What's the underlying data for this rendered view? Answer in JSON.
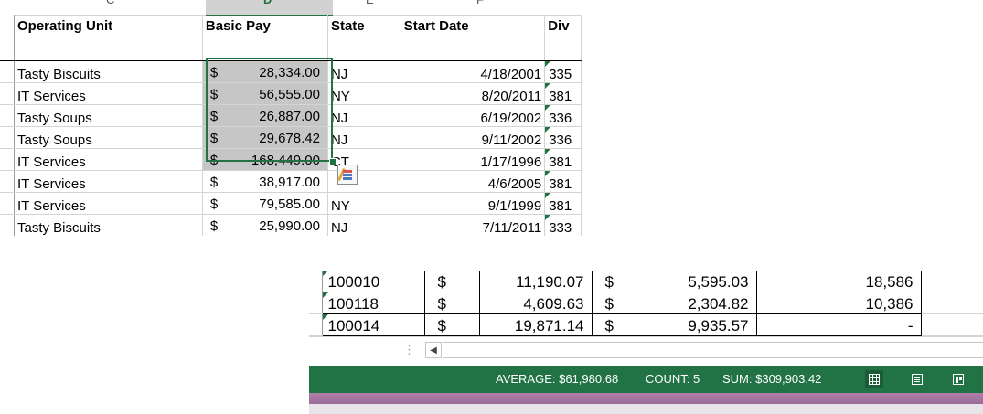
{
  "top_sheet": {
    "column_letters": [
      "C",
      "D",
      "E",
      "F"
    ],
    "headers": {
      "operating_unit": "Operating Unit",
      "basic_pay": "Basic Pay",
      "state": "State",
      "start_date": "Start Date",
      "division": "Div"
    },
    "rows": [
      {
        "unit": "Tasty Biscuits",
        "cur": "$",
        "pay": "28,334.00",
        "state": "NJ",
        "date": "4/18/2001",
        "div": "335"
      },
      {
        "unit": "IT Services",
        "cur": "$",
        "pay": "56,555.00",
        "state": "NY",
        "date": "8/20/2011",
        "div": "381"
      },
      {
        "unit": "Tasty Soups",
        "cur": "$",
        "pay": "26,887.00",
        "state": "NJ",
        "date": "6/19/2002",
        "div": "336"
      },
      {
        "unit": "Tasty Soups",
        "cur": "$",
        "pay": "29,678.42",
        "state": "NJ",
        "date": "9/11/2002",
        "div": "336"
      },
      {
        "unit": "IT Services",
        "cur": "$",
        "pay": "168,449.00",
        "state": "CT",
        "date": "1/17/1996",
        "div": "381"
      },
      {
        "unit": "IT Services",
        "cur": "$",
        "pay": "38,917.00",
        "state": "",
        "date": "4/6/2005",
        "div": "381"
      },
      {
        "unit": "IT Services",
        "cur": "$",
        "pay": "79,585.00",
        "state": "NY",
        "date": "9/1/1999",
        "div": "381"
      },
      {
        "unit": "Tasty Biscuits",
        "cur": "$",
        "pay": "25,990.00",
        "state": "NJ",
        "date": "7/11/2011",
        "div": "333"
      }
    ],
    "selected_count": 5,
    "quick_analysis": "quick-analysis-icon"
  },
  "bottom_sheet": {
    "rows": [
      {
        "code": "100010",
        "cur1": "$",
        "val1": "11,190.07",
        "cur2": "$",
        "val2": "5,595.03",
        "val3": "18,586"
      },
      {
        "code": "100118",
        "cur1": "$",
        "val1": "4,609.63",
        "cur2": "$",
        "val2": "2,304.82",
        "val3": "10,386"
      },
      {
        "code": "100014",
        "cur1": "$",
        "val1": "19,871.14",
        "cur2": "$",
        "val2": "9,935.57",
        "val3": "-"
      }
    ],
    "scroll_dots": "⋮",
    "scroll_left": "◀"
  },
  "status_bar": {
    "average": "AVERAGE: $61,980.68",
    "count": "COUNT: 5",
    "sum": "SUM: $309,903.42",
    "views": [
      "normal-view-icon",
      "page-layout-icon",
      "page-break-preview-icon"
    ]
  },
  "colors": {
    "accent": "#217346",
    "selection": "#c6c6c6"
  }
}
